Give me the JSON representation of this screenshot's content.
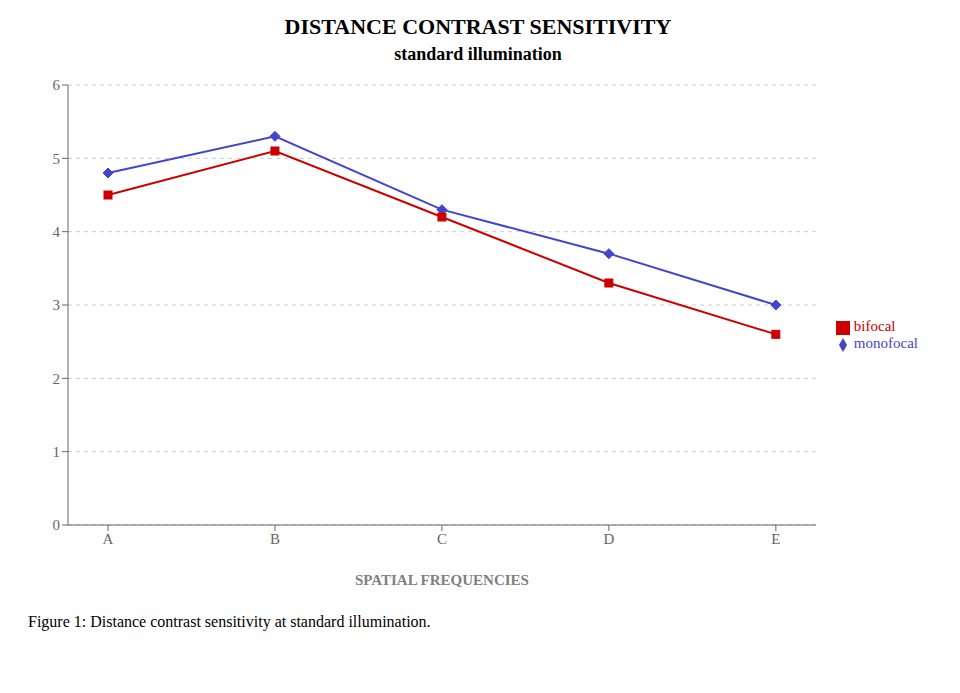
{
  "chart_data": {
    "type": "line",
    "title": "DISTANCE CONTRAST SENSITIVITY",
    "subtitle": "standard illumination",
    "x_label": "SPATIAL FREQUENCIES",
    "caption": "Figure 1: Distance contrast sensitivity at standard illumination.",
    "categories": [
      "A",
      "B",
      "C",
      "D",
      "E"
    ],
    "series": [
      {
        "name": "monofocal",
        "color": "#4444CC",
        "marker": "diamond",
        "values": [
          4.8,
          5.3,
          4.3,
          3.7,
          3.0
        ]
      },
      {
        "name": "bifocal",
        "color": "#CC0000",
        "marker": "square",
        "values": [
          4.5,
          5.1,
          4.2,
          3.3,
          2.6
        ]
      }
    ],
    "ylim": [
      0,
      6
    ],
    "yticks": [
      0,
      1,
      2,
      3,
      4,
      5,
      6
    ],
    "grid": true,
    "legend": "right"
  }
}
